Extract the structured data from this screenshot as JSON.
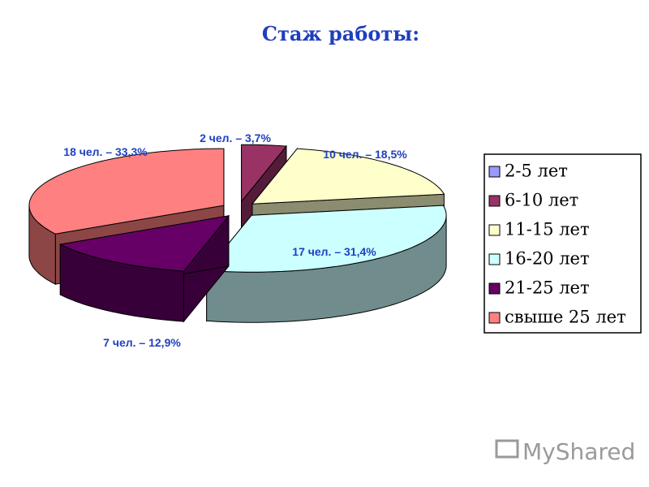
{
  "chart_data": {
    "type": "pie",
    "title": "Стаж работы:",
    "categories": [
      "2-5 лет",
      "6-10 лет",
      "11-15 лет",
      "16-20 лет",
      "21-25 лет",
      "свыше 25 лет"
    ],
    "values": [
      0,
      3.7,
      18.5,
      31.4,
      12.9,
      33.3
    ],
    "value_labels": [
      null,
      "2 чел.  – 3,7%",
      "10 чел.  – 18,5%",
      "17 чел.  – 31,4%",
      "7 чел.  – 12,9%",
      "18 чел.  – 33,3%"
    ],
    "colors": [
      "#9999ff",
      "#993366",
      "#ffffcc",
      "#ccffff",
      "#660066",
      "#ff8080"
    ],
    "legend": "right"
  },
  "watermark": "MyShared"
}
